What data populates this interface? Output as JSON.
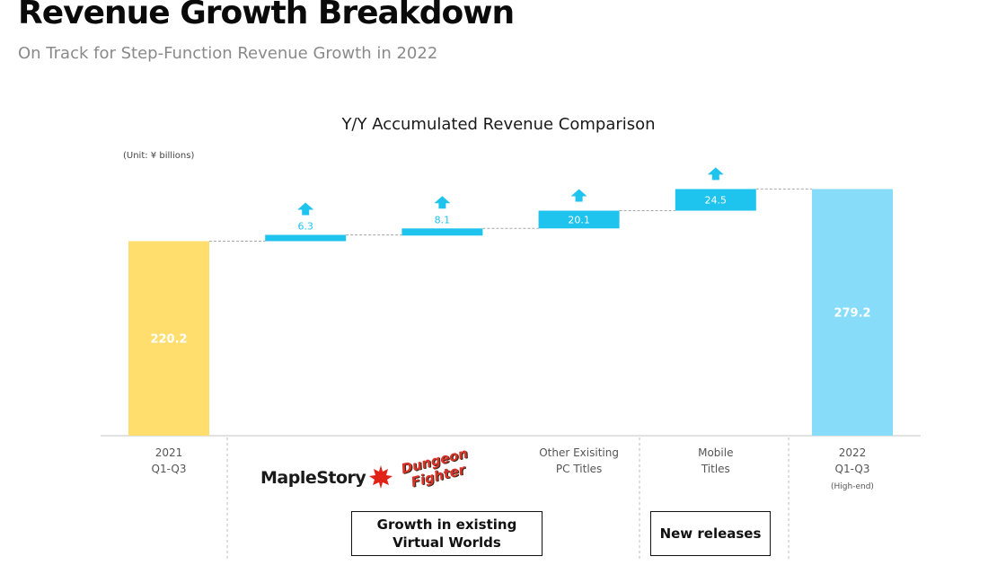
{
  "header": {
    "title": "Revenue Growth Breakdown",
    "subtitle": "On Track for Step-Function Revenue Growth in 2022"
  },
  "chart_data": {
    "type": "bar",
    "subtype": "waterfall",
    "title": "Y/Y Accumulated Revenue Comparison",
    "unit_note": "(Unit: ¥ billions)",
    "categories": [
      {
        "id": "start",
        "label_lines": [
          "2021",
          "Q1-Q3"
        ],
        "sub": ""
      },
      {
        "id": "maplestory",
        "label_lines": [],
        "sub": ""
      },
      {
        "id": "dnf",
        "label_lines": [],
        "sub": ""
      },
      {
        "id": "other_pc",
        "label_lines": [
          "Other Exisiting",
          "PC Titles"
        ],
        "sub": ""
      },
      {
        "id": "mobile",
        "label_lines": [
          "Mobile",
          "Titles"
        ],
        "sub": ""
      },
      {
        "id": "end",
        "label_lines": [
          "2022",
          "Q1-Q3"
        ],
        "sub": "(High-end)"
      }
    ],
    "bars": [
      {
        "kind": "total",
        "value": 220.2,
        "label": "220.2",
        "color": "#FFDE6E"
      },
      {
        "kind": "delta",
        "value": 6.3,
        "label": "6.3",
        "color": "#1EC3EE"
      },
      {
        "kind": "delta",
        "value": 8.1,
        "label": "8.1",
        "color": "#1EC3EE"
      },
      {
        "kind": "delta",
        "value": 20.1,
        "label": "20.1",
        "color": "#1EC3EE"
      },
      {
        "kind": "delta",
        "value": 24.5,
        "label": "24.5",
        "color": "#1EC3EE"
      },
      {
        "kind": "total",
        "value": 279.2,
        "label": "279.2",
        "color": "#87DCFA"
      }
    ],
    "arrow_color": "#1EC3EE",
    "grid": false,
    "legend": "none"
  },
  "logos": {
    "maplestory": "MapleStory",
    "dungeon_fighter": [
      "Dungeon",
      "Fighter"
    ]
  },
  "group_boxes": {
    "growth": [
      "Growth in existing",
      "Virtual Worlds"
    ],
    "new": "New releases"
  }
}
